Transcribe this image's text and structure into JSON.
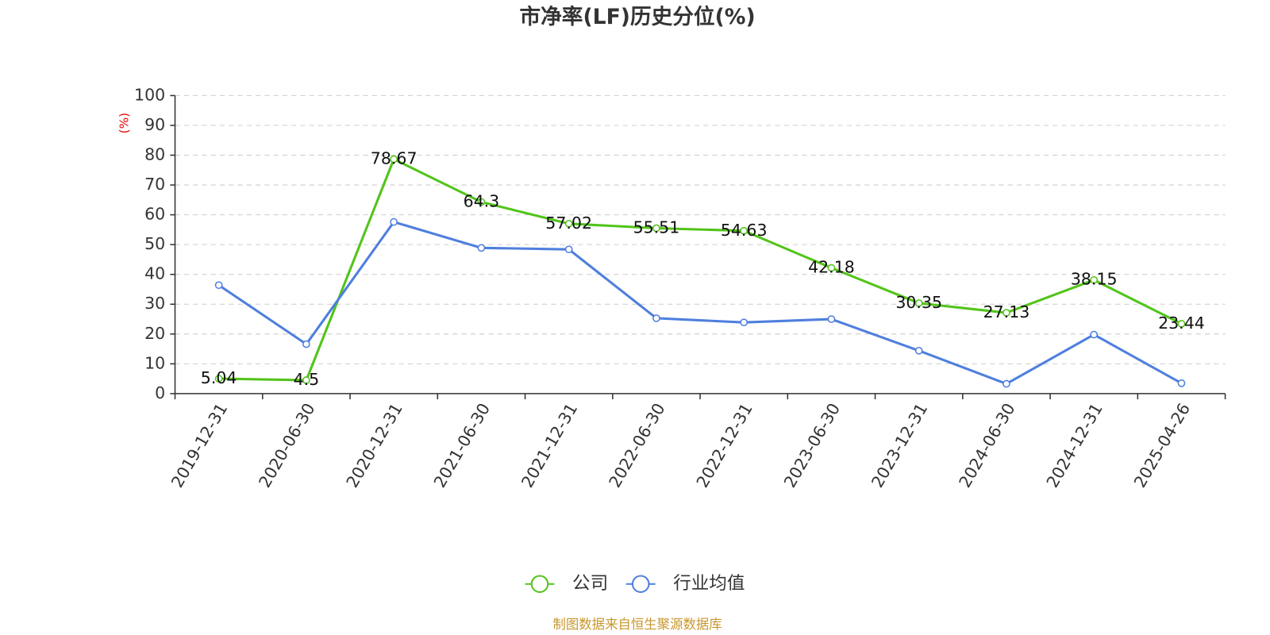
{
  "chart_data": {
    "type": "line",
    "title": "市净率(LF)历史分位(%)",
    "y_axis_label": "(%)",
    "categories": [
      "2019-12-31",
      "2020-06-30",
      "2020-12-31",
      "2021-06-30",
      "2021-12-31",
      "2022-06-30",
      "2022-12-31",
      "2023-06-30",
      "2023-12-31",
      "2024-06-30",
      "2024-12-31",
      "2025-04-26"
    ],
    "series": [
      {
        "name": "公司",
        "color": "#52c41a",
        "values": [
          5.04,
          4.5,
          78.67,
          64.3,
          57.02,
          55.51,
          54.63,
          42.18,
          30.35,
          27.13,
          38.15,
          23.44
        ],
        "show_labels": true
      },
      {
        "name": "行业均值",
        "color": "#4f7fde",
        "values": [
          36.4,
          16.6,
          57.6,
          48.9,
          48.4,
          25.3,
          23.9,
          25,
          14.4,
          3.3,
          19.8,
          3.5
        ],
        "show_labels": false
      }
    ],
    "ylim": [
      0,
      100
    ],
    "yticks": [
      0,
      10,
      20,
      30,
      40,
      50,
      60,
      70,
      80,
      90,
      100
    ],
    "grid": true,
    "legend": "bottom",
    "source": "制图数据来自恒生聚源数据库"
  }
}
